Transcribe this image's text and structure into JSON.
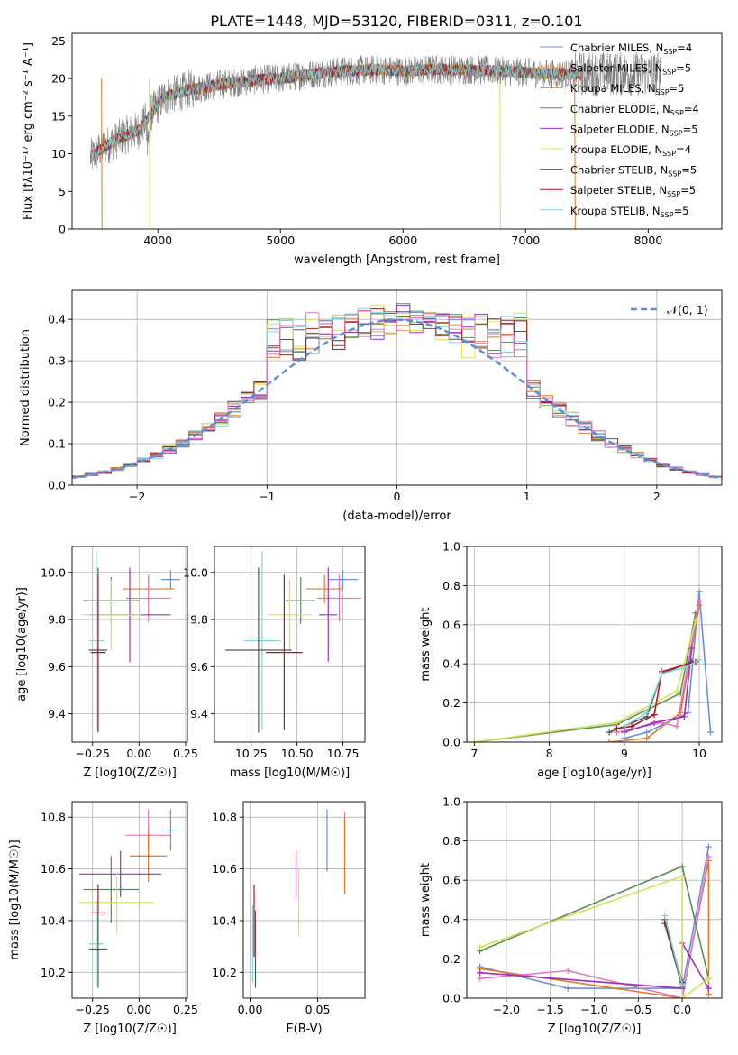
{
  "figure_title": "PLATE=1448, MJD=53120, FIBERID=0311, z=0.101",
  "colors": {
    "Chabrier MILES": "#6a8fd8",
    "Salpeter MILES": "#e8a060",
    "Kroupa MILES": "#e07b28",
    "Chabrier ELODIE": "#5b8c5a",
    "Salpeter ELODIE": "#9b30b8",
    "Kroupa ELODIE": "#d4e157",
    "Chabrier STELIB": "#555555",
    "Salpeter STELIB": "#b0171f",
    "Kroupa STELIB": "#7fd4d8",
    "extra_pink": "#e377c2"
  },
  "chart_data": [
    {
      "id": "spectrum",
      "type": "line",
      "title": "PLATE=1448, MJD=53120, FIBERID=0311, z=0.101",
      "xlabel": "wavelength [Angstrom, rest frame]",
      "ylabel": "Flux [fλ10⁻¹⁷ erg cm⁻² s⁻¹ A⁻¹]",
      "xlim": [
        3300,
        8600
      ],
      "ylim": [
        0,
        26
      ],
      "xticks": [
        4000,
        5000,
        6000,
        7000,
        8000
      ],
      "yticks": [
        0,
        5,
        10,
        15,
        20,
        25
      ],
      "legend_position": "right",
      "legend": [
        "Chabrier MILES, N_SSP=4",
        "Salpeter MILES, N_SSP=5",
        "Kroupa MILES, N_SSP=5",
        "Chabrier ELODIE, N_SSP=4",
        "Salpeter ELODIE, N_SSP=5",
        "Kroupa ELODIE, N_SSP=4",
        "Chabrier STELIB, N_SSP=5",
        "Salpeter STELIB, N_SSP=5",
        "Kroupa STELIB, N_SSP=5"
      ],
      "continuum": {
        "x": [
          3450,
          3550,
          3700,
          3850,
          3950,
          4050,
          4250,
          4500,
          4800,
          5000,
          5200,
          5500,
          5800,
          6000,
          6200,
          6500,
          6800,
          7000,
          7200,
          7450
        ],
        "y": [
          9.5,
          10.8,
          12.2,
          13.2,
          15.5,
          17.5,
          18.5,
          19.2,
          19.8,
          20.0,
          20.5,
          21.0,
          21.2,
          21.0,
          21.2,
          21.2,
          21.0,
          20.8,
          20.6,
          20.6
        ]
      },
      "observed_range": [
        3450,
        8100
      ],
      "model_range": [
        3450,
        7450
      ]
    },
    {
      "id": "residuals",
      "type": "histogram",
      "xlabel": "(data-model)/error",
      "ylabel": "Normed distribution",
      "xlim": [
        -2.5,
        2.5
      ],
      "ylim": [
        0,
        0.47
      ],
      "xticks": [
        -2,
        -1,
        0,
        1,
        2
      ],
      "yticks": [
        0.0,
        0.1,
        0.2,
        0.3,
        0.4
      ],
      "legend_position": "upper right",
      "legend": [
        "N(0,1)"
      ],
      "bin_width": 0.1
    },
    {
      "id": "age_vs_Z",
      "type": "errorbar",
      "xlabel": "Z [log10(Z/Z☉)]",
      "ylabel": "age  [log10(age/yr)]",
      "xlim": [
        -0.36,
        0.26
      ],
      "ylim": [
        9.28,
        10.11
      ],
      "xticks": [
        -0.25,
        0.0,
        0.25
      ],
      "yticks": [
        9.4,
        9.6,
        9.8,
        10.0
      ],
      "points": [
        {
          "key": "Chabrier MILES",
          "x": 0.17,
          "xerr": 0.05,
          "y": 9.97,
          "yerr": 0.04
        },
        {
          "key": "Kroupa MILES",
          "x": 0.05,
          "xerr": 0.14,
          "y": 9.93,
          "yerr": 0.06
        },
        {
          "key": "extra_pink",
          "x": 0.05,
          "xerr": 0.12,
          "y": 9.89,
          "yerr": 0.1
        },
        {
          "key": "Chabrier ELODIE",
          "x": -0.15,
          "xerr": 0.15,
          "y": 9.88,
          "yerr": 0.1
        },
        {
          "key": "Salpeter ELODIE",
          "x": -0.05,
          "xerr": 0.22,
          "y": 9.82,
          "yerr": 0.2
        },
        {
          "key": "Kroupa ELODIE",
          "x": -0.15,
          "xerr": 0.16,
          "y": 9.82,
          "yerr": 0.15
        },
        {
          "key": "Kroupa STELIB",
          "x": -0.23,
          "xerr": 0.04,
          "y": 9.71,
          "yerr": 0.38
        },
        {
          "key": "Chabrier STELIB",
          "x": -0.22,
          "xerr": 0.05,
          "y": 9.67,
          "yerr": 0.35
        },
        {
          "key": "Salpeter STELIB",
          "x": -0.22,
          "xerr": 0.04,
          "y": 9.66,
          "yerr": 0.33
        }
      ]
    },
    {
      "id": "age_vs_mass",
      "type": "errorbar",
      "xlabel": "mass [log10(M/M☉)]",
      "ylabel": "",
      "xlim": [
        10.05,
        10.87
      ],
      "ylim": [
        9.28,
        10.11
      ],
      "xticks": [
        10.25,
        10.5,
        10.75
      ],
      "yticks": [
        9.4,
        9.6,
        9.8,
        10.0
      ],
      "points": [
        {
          "key": "Chabrier MILES",
          "x": 10.75,
          "xerr": 0.08,
          "y": 9.97,
          "yerr": 0.04
        },
        {
          "key": "Kroupa MILES",
          "x": 10.65,
          "xerr": 0.1,
          "y": 9.93,
          "yerr": 0.06
        },
        {
          "key": "extra_pink",
          "x": 10.73,
          "xerr": 0.12,
          "y": 9.89,
          "yerr": 0.1
        },
        {
          "key": "Chabrier ELODIE",
          "x": 10.52,
          "xerr": 0.08,
          "y": 9.88,
          "yerr": 0.1
        },
        {
          "key": "Salpeter ELODIE",
          "x": 10.67,
          "xerr": 0.05,
          "y": 9.82,
          "yerr": 0.2
        },
        {
          "key": "Kroupa ELODIE",
          "x": 10.46,
          "xerr": 0.12,
          "y": 9.82,
          "yerr": 0.15
        },
        {
          "key": "Kroupa STELIB",
          "x": 10.31,
          "xerr": 0.1,
          "y": 9.71,
          "yerr": 0.38
        },
        {
          "key": "Chabrier STELIB",
          "x": 10.29,
          "xerr": 0.18,
          "y": 9.67,
          "yerr": 0.35
        },
        {
          "key": "Salpeter STELIB",
          "x": 10.43,
          "xerr": 0.1,
          "y": 9.66,
          "yerr": 0.33
        }
      ]
    },
    {
      "id": "weight_vs_age",
      "type": "line",
      "xlabel": "age  [log10(age/yr)]",
      "ylabel": "mass weight",
      "xlim": [
        6.9,
        10.3
      ],
      "ylim": [
        0,
        1
      ],
      "xticks": [
        7,
        8,
        9,
        10
      ],
      "yticks": [
        0.0,
        0.2,
        0.4,
        0.6,
        0.8,
        1.0
      ],
      "series": [
        {
          "key": "Chabrier MILES",
          "x": [
            9.0,
            9.3,
            9.85,
            10.0,
            10.15
          ],
          "y": [
            0.02,
            0.05,
            0.15,
            0.77,
            0.05
          ]
        },
        {
          "key": "Kroupa MILES",
          "x": [
            8.8,
            9.3,
            9.75,
            10.0
          ],
          "y": [
            0.0,
            0.02,
            0.15,
            0.7
          ]
        },
        {
          "key": "extra_pink",
          "x": [
            8.9,
            9.5,
            9.7,
            10.0
          ],
          "y": [
            0.05,
            0.1,
            0.08,
            0.72
          ]
        },
        {
          "key": "Chabrier ELODIE",
          "x": [
            7.0,
            8.9,
            9.75,
            9.95
          ],
          "y": [
            0.0,
            0.09,
            0.25,
            0.66
          ]
        },
        {
          "key": "Salpeter ELODIE",
          "x": [
            9.0,
            9.4,
            9.8,
            9.9
          ],
          "y": [
            0.05,
            0.1,
            0.13,
            0.48
          ]
        },
        {
          "key": "Kroupa ELODIE",
          "x": [
            7.0,
            8.9,
            9.7,
            9.95
          ],
          "y": [
            0.0,
            0.1,
            0.26,
            0.62
          ]
        },
        {
          "key": "Chabrier STELIB",
          "x": [
            8.8,
            9.3,
            9.5,
            9.9
          ],
          "y": [
            0.05,
            0.13,
            0.35,
            0.41
          ]
        },
        {
          "key": "Salpeter STELIB",
          "x": [
            8.9,
            9.1,
            9.4,
            9.5,
            9.95
          ],
          "y": [
            0.07,
            0.08,
            0.14,
            0.36,
            0.41
          ]
        },
        {
          "key": "Kroupa STELIB",
          "x": [
            9.0,
            9.3,
            9.5,
            9.8,
            10.0
          ],
          "y": [
            0.08,
            0.15,
            0.35,
            0.38,
            0.42
          ]
        }
      ]
    },
    {
      "id": "mass_vs_Z",
      "type": "errorbar",
      "xlabel": "Z [log10(Z/Z☉)]",
      "ylabel": "mass [log10(M/M☉)]",
      "xlim": [
        -0.36,
        0.26
      ],
      "ylim": [
        10.1,
        10.86
      ],
      "xticks": [
        -0.25,
        0.0,
        0.25
      ],
      "yticks": [
        10.2,
        10.4,
        10.6,
        10.8
      ],
      "points": [
        {
          "key": "Chabrier MILES",
          "x": 0.17,
          "xerr": 0.05,
          "y": 10.75,
          "yerr": 0.08
        },
        {
          "key": "extra_pink",
          "x": 0.05,
          "xerr": 0.12,
          "y": 10.73,
          "yerr": 0.1
        },
        {
          "key": "Kroupa MILES",
          "x": 0.05,
          "xerr": 0.1,
          "y": 10.65,
          "yerr": 0.1
        },
        {
          "key": "Salpeter ELODIE",
          "x": -0.1,
          "xerr": 0.22,
          "y": 10.58,
          "yerr": 0.09
        },
        {
          "key": "Chabrier ELODIE",
          "x": -0.15,
          "xerr": 0.15,
          "y": 10.52,
          "yerr": 0.13
        },
        {
          "key": "Kroupa ELODIE",
          "x": -0.12,
          "xerr": 0.2,
          "y": 10.47,
          "yerr": 0.12
        },
        {
          "key": "Salpeter STELIB",
          "x": -0.22,
          "xerr": 0.04,
          "y": 10.43,
          "yerr": 0.11
        },
        {
          "key": "Kroupa STELIB",
          "x": -0.23,
          "xerr": 0.04,
          "y": 10.31,
          "yerr": 0.17
        },
        {
          "key": "Chabrier STELIB",
          "x": -0.22,
          "xerr": 0.05,
          "y": 10.29,
          "yerr": 0.15
        }
      ]
    },
    {
      "id": "mass_vs_EBV",
      "type": "errorbar",
      "xlabel": "E(B-V)",
      "ylabel": "",
      "xlim": [
        -0.005,
        0.085
      ],
      "ylim": [
        10.1,
        10.86
      ],
      "xticks": [
        0.0,
        0.05
      ],
      "yticks": [
        10.2,
        10.4,
        10.6,
        10.8
      ],
      "points": [
        {
          "key": "Chabrier MILES",
          "x": 0.057,
          "xerr": 0,
          "y": 10.71,
          "yerr": 0.12
        },
        {
          "key": "extra_pink",
          "x": 0.07,
          "xerr": 0,
          "y": 10.74,
          "yerr": 0.08
        },
        {
          "key": "Kroupa MILES",
          "x": 0.07,
          "xerr": 0,
          "y": 10.65,
          "yerr": 0.15
        },
        {
          "key": "Salpeter ELODIE",
          "x": 0.034,
          "xerr": 0,
          "y": 10.58,
          "yerr": 0.09
        },
        {
          "key": "Kroupa ELODIE",
          "x": 0.036,
          "xerr": 0,
          "y": 10.47,
          "yerr": 0.13
        },
        {
          "key": "Salpeter STELIB",
          "x": 0.003,
          "xerr": 0,
          "y": 10.4,
          "yerr": 0.14
        },
        {
          "key": "Kroupa STELIB",
          "x": 0.002,
          "xerr": 0,
          "y": 10.31,
          "yerr": 0.15
        },
        {
          "key": "Chabrier STELIB",
          "x": 0.004,
          "xerr": 0,
          "y": 10.29,
          "yerr": 0.15
        }
      ]
    },
    {
      "id": "weight_vs_Z",
      "type": "line",
      "xlabel": "Z [log10(Z/Z☉)]",
      "ylabel": "mass weight",
      "xlim": [
        -2.45,
        0.45
      ],
      "ylim": [
        0,
        1
      ],
      "xticks": [
        -2.0,
        -1.5,
        -1.0,
        -0.5,
        0.0
      ],
      "yticks": [
        0.0,
        0.2,
        0.4,
        0.6,
        0.8,
        1.0
      ],
      "series": [
        {
          "key": "Chabrier MILES",
          "x": [
            -2.3,
            -1.3,
            0.0,
            0.3
          ],
          "y": [
            0.16,
            0.05,
            0.05,
            0.77
          ]
        },
        {
          "key": "Kroupa MILES",
          "x": [
            -2.3,
            0.0,
            0.3,
            0.3
          ],
          "y": [
            0.15,
            0.0,
            0.7,
            0.02
          ]
        },
        {
          "key": "extra_pink",
          "x": [
            -2.3,
            -1.3,
            0.0,
            0.3
          ],
          "y": [
            0.1,
            0.14,
            0.0,
            0.72
          ]
        },
        {
          "key": "Chabrier ELODIE",
          "x": [
            -2.3,
            0.0,
            0.3
          ],
          "y": [
            0.24,
            0.67,
            0.1
          ]
        },
        {
          "key": "Salpeter ELODIE",
          "x": [
            -2.3,
            0.0,
            0.0,
            0.3
          ],
          "y": [
            0.13,
            0.05,
            0.28,
            0.05
          ]
        },
        {
          "key": "Kroupa ELODIE",
          "x": [
            -2.3,
            0.0,
            0.0,
            0.3
          ],
          "y": [
            0.26,
            0.62,
            0.0,
            0.1
          ]
        },
        {
          "key": "Chabrier STELIB",
          "x": [
            -0.2,
            0.0
          ],
          "y": [
            0.38,
            0.06
          ]
        },
        {
          "key": "Salpeter STELIB",
          "x": [
            -0.2,
            0.0
          ],
          "y": [
            0.4,
            0.08
          ]
        },
        {
          "key": "Kroupa STELIB",
          "x": [
            -0.2,
            0.0
          ],
          "y": [
            0.42,
            0.07
          ]
        }
      ]
    }
  ]
}
